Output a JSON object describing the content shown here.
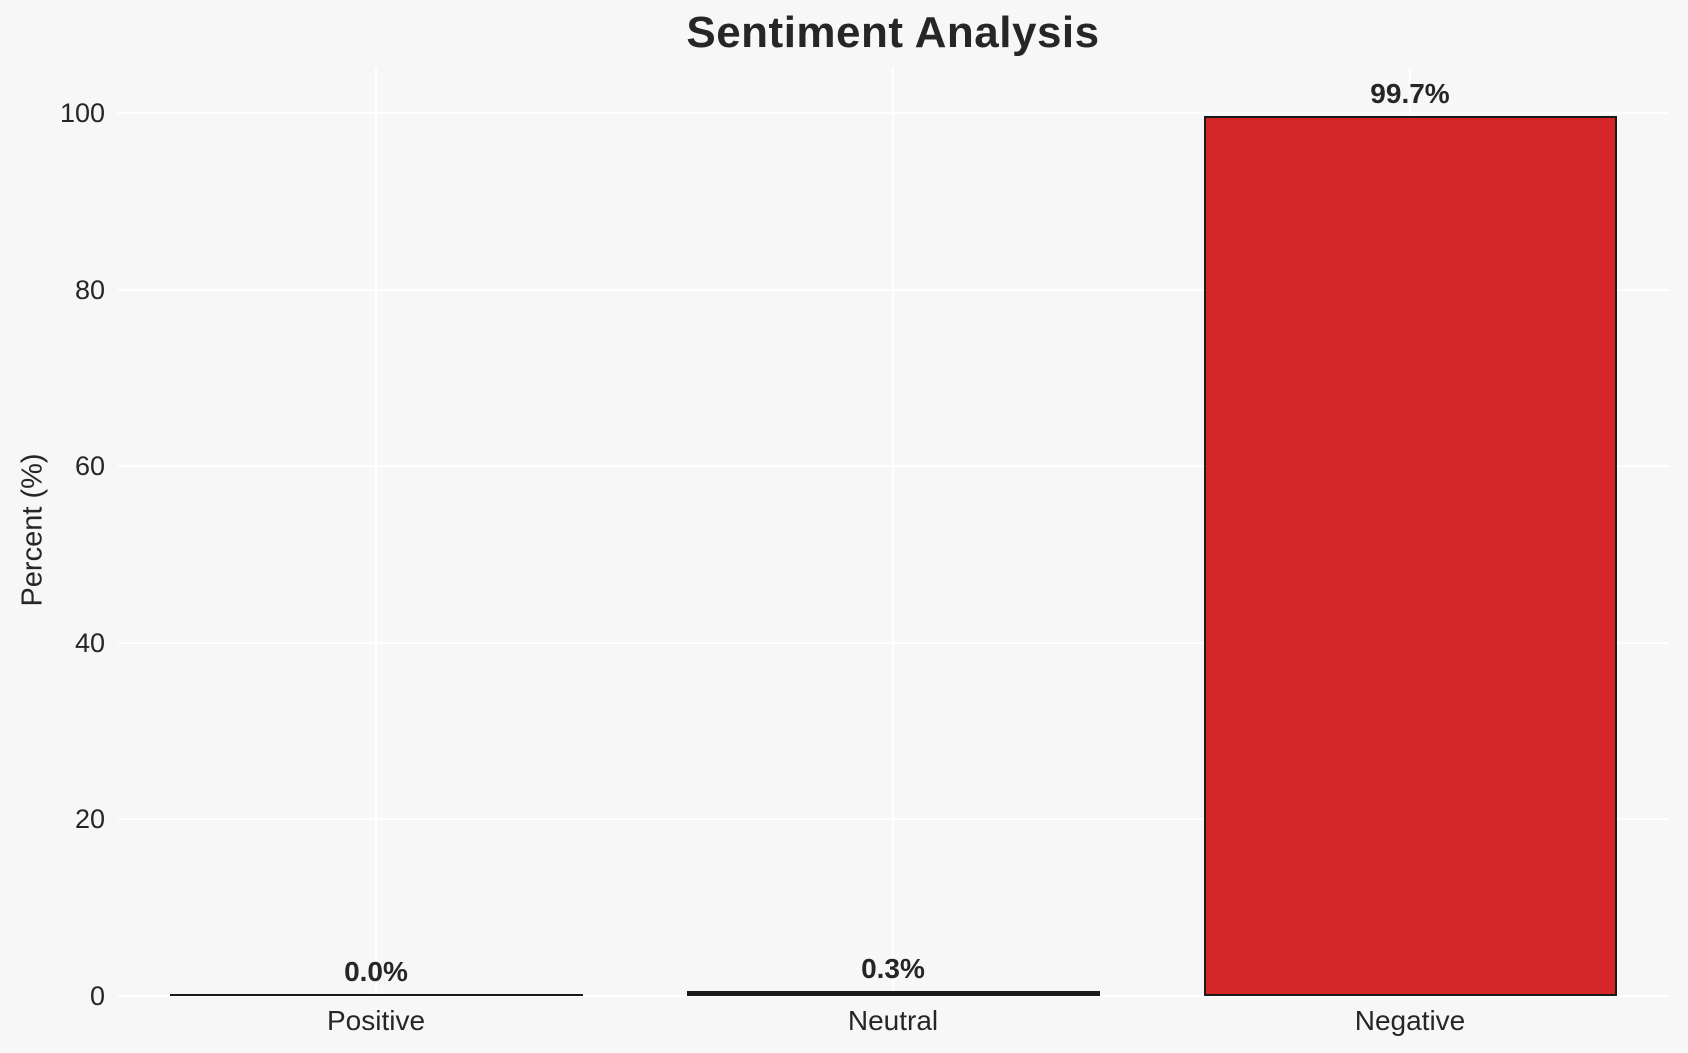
{
  "chart_data": {
    "type": "bar",
    "title": "Sentiment Analysis",
    "xlabel": "",
    "ylabel": "Percent (%)",
    "categories": [
      "Positive",
      "Neutral",
      "Negative"
    ],
    "values": [
      0.0,
      0.3,
      99.7
    ],
    "bar_labels": [
      "0.0%",
      "0.3%",
      "99.7%"
    ],
    "yticks": [
      0,
      20,
      40,
      60,
      80,
      100
    ],
    "ylim": [
      0,
      104
    ],
    "grid": true,
    "legend": "none",
    "colors": {
      "bar_fills": [
        "#1a1a1a",
        "#1a1a1a",
        "#d62728"
      ],
      "bar_edge": "#1a1a1a",
      "background": "#f7f7f7",
      "gridline": "#ffffff",
      "text": "#262626"
    }
  }
}
